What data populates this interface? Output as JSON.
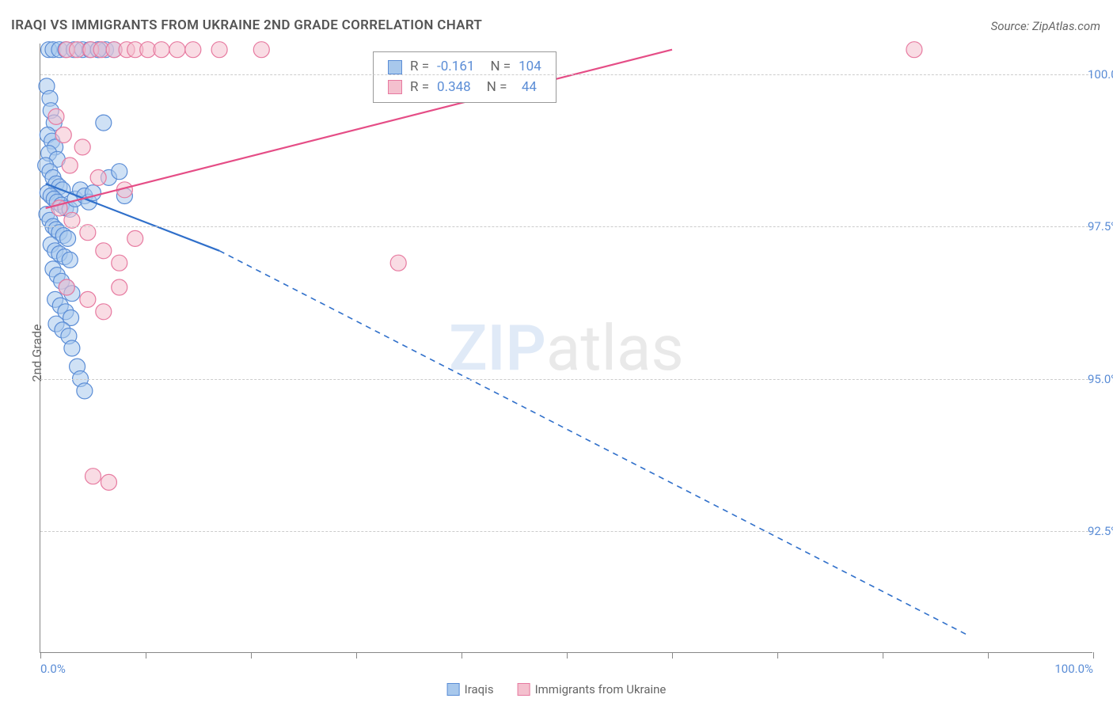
{
  "title": "IRAQI VS IMMIGRANTS FROM UKRAINE 2ND GRADE CORRELATION CHART",
  "source": "Source: ZipAtlas.com",
  "y_axis_label": "2nd Grade",
  "watermark": {
    "part1": "ZIP",
    "part2": "atlas"
  },
  "chart": {
    "type": "scatter-correlation",
    "background_color": "#ffffff",
    "axis_color": "#888888",
    "grid_color": "#cccccc",
    "grid_dash": "4,4",
    "xlim": [
      0,
      100
    ],
    "ylim": [
      90.5,
      100.5
    ],
    "x_ticks": [
      0,
      10,
      20,
      30,
      40,
      50,
      60,
      70,
      80,
      90,
      100
    ],
    "x_tick_labels": {
      "0": "0.0%",
      "100": "100.0%"
    },
    "y_ticks": [
      92.5,
      95.0,
      97.5,
      100.0
    ],
    "y_tick_labels": [
      "92.5%",
      "95.0%",
      "97.5%",
      "100.0%"
    ],
    "tick_label_color": "#5b8dd6",
    "tick_label_fontsize": 15,
    "series": [
      {
        "key": "iraqis",
        "label": "Iraqis",
        "fill": "#a8c8ec",
        "stroke": "#5b8dd6",
        "line_color": "#2f6fca",
        "line_width": 2.2,
        "marker_radius": 10,
        "marker_opacity": 0.55,
        "stats": {
          "r": "-0.161",
          "n": "104"
        },
        "regression": {
          "solid": {
            "x1": 0.5,
            "y1": 98.2,
            "x2": 17,
            "y2": 97.1
          },
          "dashed": {
            "x1": 17,
            "y1": 97.1,
            "x2": 88,
            "y2": 90.8
          }
        },
        "points": [
          [
            0.8,
            100.4
          ],
          [
            1.2,
            100.4
          ],
          [
            1.8,
            100.4
          ],
          [
            2.4,
            100.4
          ],
          [
            3.2,
            100.4
          ],
          [
            4.0,
            100.4
          ],
          [
            4.7,
            100.4
          ],
          [
            5.5,
            100.4
          ],
          [
            6.2,
            100.4
          ],
          [
            0.6,
            99.8
          ],
          [
            0.9,
            99.6
          ],
          [
            1.0,
            99.4
          ],
          [
            1.3,
            99.2
          ],
          [
            0.7,
            99.0
          ],
          [
            1.1,
            98.9
          ],
          [
            1.4,
            98.8
          ],
          [
            0.8,
            98.7
          ],
          [
            1.6,
            98.6
          ],
          [
            0.5,
            98.5
          ],
          [
            0.9,
            98.4
          ],
          [
            1.2,
            98.3
          ],
          [
            1.5,
            98.2
          ],
          [
            1.8,
            98.15
          ],
          [
            2.1,
            98.1
          ],
          [
            0.7,
            98.05
          ],
          [
            1.0,
            98.0
          ],
          [
            1.3,
            97.95
          ],
          [
            1.6,
            97.9
          ],
          [
            2.0,
            97.85
          ],
          [
            2.4,
            97.8
          ],
          [
            2.8,
            97.78
          ],
          [
            3.3,
            97.95
          ],
          [
            3.8,
            98.1
          ],
          [
            4.2,
            98.0
          ],
          [
            4.6,
            97.9
          ],
          [
            5.0,
            98.05
          ],
          [
            5.5,
            100.4
          ],
          [
            6.0,
            99.2
          ],
          [
            6.5,
            98.3
          ],
          [
            7.0,
            100.4
          ],
          [
            7.5,
            98.4
          ],
          [
            8.0,
            98.0
          ],
          [
            0.6,
            97.7
          ],
          [
            0.9,
            97.6
          ],
          [
            1.2,
            97.5
          ],
          [
            1.5,
            97.45
          ],
          [
            1.8,
            97.4
          ],
          [
            2.2,
            97.35
          ],
          [
            2.6,
            97.3
          ],
          [
            1.0,
            97.2
          ],
          [
            1.4,
            97.1
          ],
          [
            1.8,
            97.05
          ],
          [
            2.3,
            97.0
          ],
          [
            2.8,
            96.95
          ],
          [
            1.2,
            96.8
          ],
          [
            1.6,
            96.7
          ],
          [
            2.0,
            96.6
          ],
          [
            2.5,
            96.5
          ],
          [
            3.0,
            96.4
          ],
          [
            1.4,
            96.3
          ],
          [
            1.9,
            96.2
          ],
          [
            2.4,
            96.1
          ],
          [
            2.9,
            96.0
          ],
          [
            1.5,
            95.9
          ],
          [
            2.1,
            95.8
          ],
          [
            2.7,
            95.7
          ],
          [
            3.0,
            95.5
          ],
          [
            3.5,
            95.2
          ],
          [
            3.8,
            95.0
          ],
          [
            4.2,
            94.8
          ]
        ]
      },
      {
        "key": "ukraine",
        "label": "Immigrants from Ukraine",
        "fill": "#f4c0ce",
        "stroke": "#e77aa0",
        "line_color": "#e54d86",
        "line_width": 2.2,
        "marker_radius": 10,
        "marker_opacity": 0.55,
        "stats": {
          "r": "0.348",
          "n": "44"
        },
        "regression": {
          "solid": {
            "x1": 0.5,
            "y1": 97.8,
            "x2": 60,
            "y2": 100.4
          },
          "dashed": null
        },
        "points": [
          [
            2.5,
            100.4
          ],
          [
            3.5,
            100.4
          ],
          [
            4.8,
            100.4
          ],
          [
            5.8,
            100.4
          ],
          [
            7.0,
            100.4
          ],
          [
            8.2,
            100.4
          ],
          [
            9.0,
            100.4
          ],
          [
            10.2,
            100.4
          ],
          [
            11.5,
            100.4
          ],
          [
            13.0,
            100.4
          ],
          [
            14.5,
            100.4
          ],
          [
            17.0,
            100.4
          ],
          [
            21.0,
            100.4
          ],
          [
            83.0,
            100.4
          ],
          [
            1.5,
            99.3
          ],
          [
            2.2,
            99.0
          ],
          [
            4.0,
            98.8
          ],
          [
            2.8,
            98.5
          ],
          [
            5.5,
            98.3
          ],
          [
            8.0,
            98.1
          ],
          [
            1.8,
            97.8
          ],
          [
            3.0,
            97.6
          ],
          [
            4.5,
            97.4
          ],
          [
            6.0,
            97.1
          ],
          [
            7.5,
            96.9
          ],
          [
            9.0,
            97.3
          ],
          [
            2.5,
            96.5
          ],
          [
            4.5,
            96.3
          ],
          [
            6.0,
            96.1
          ],
          [
            7.5,
            96.5
          ],
          [
            34.0,
            96.9
          ],
          [
            5.0,
            93.4
          ],
          [
            6.5,
            93.3
          ]
        ]
      }
    ]
  },
  "legend": {
    "items": [
      {
        "label": "Iraqis",
        "fill": "#a8c8ec",
        "stroke": "#5b8dd6"
      },
      {
        "label": "Immigrants from Ukraine",
        "fill": "#f4c0ce",
        "stroke": "#e77aa0"
      }
    ]
  },
  "stats_box": {
    "rows": [
      {
        "fill": "#a8c8ec",
        "stroke": "#5b8dd6",
        "r_label": "R =",
        "r": "-0.161",
        "n_label": "N =",
        "n": "104"
      },
      {
        "fill": "#f4c0ce",
        "stroke": "#e77aa0",
        "r_label": "R =",
        "r": "0.348",
        "n_label": "N =",
        "n": "  44"
      }
    ]
  }
}
